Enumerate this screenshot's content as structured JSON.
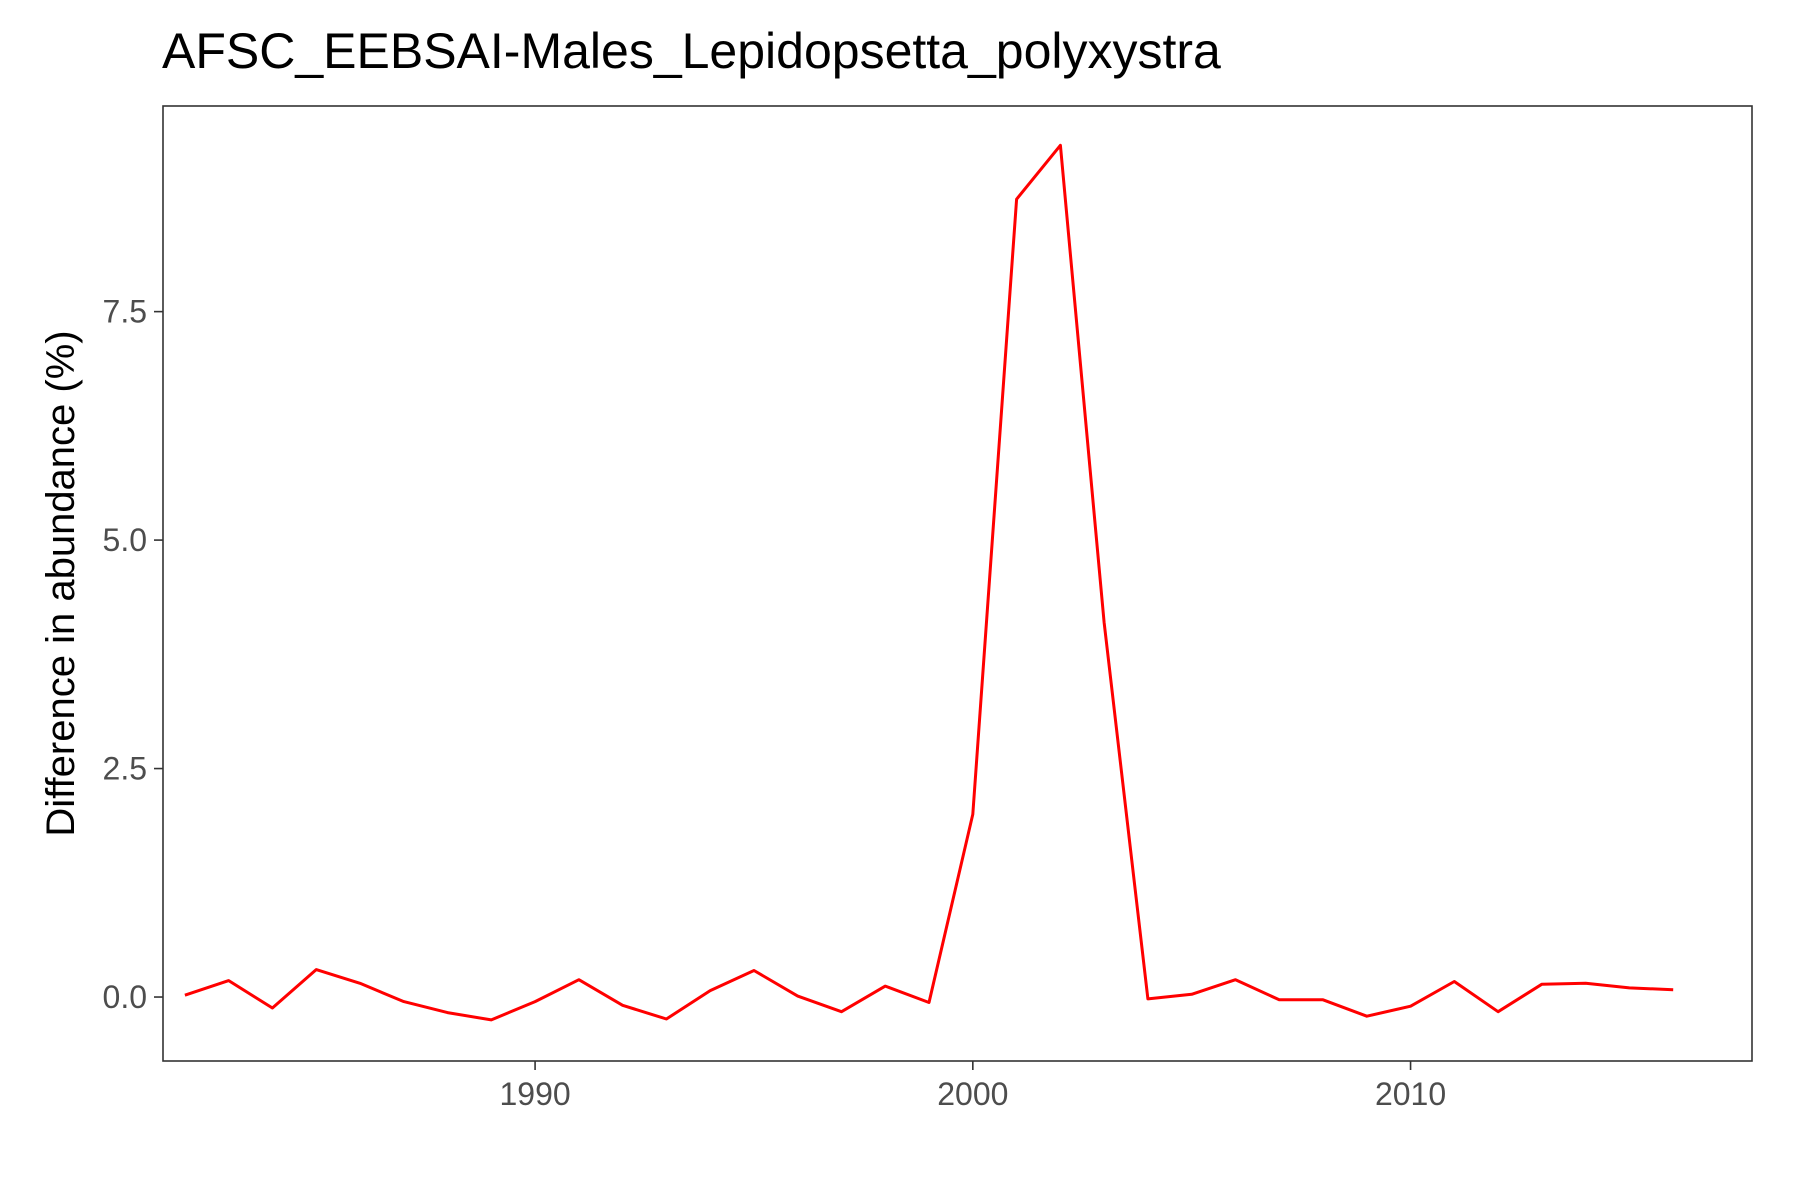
{
  "chart_data": {
    "type": "line",
    "title": "AFSC_EEBSAI-Males_Lepidopsetta_polyxystra",
    "xlabel": "",
    "ylabel": "Difference in abundance (%)",
    "xlim": [
      1981.5,
      2017.8
    ],
    "ylim": [
      -0.7,
      9.75
    ],
    "x_ticks": [
      1990,
      2000,
      2010
    ],
    "y_ticks": [
      0.0,
      2.5,
      5.0,
      7.5
    ],
    "y_tick_labels": [
      "0.0",
      "2.5",
      "5.0",
      "7.5"
    ],
    "grid": false,
    "line_color": "#ff0000",
    "series": [
      {
        "x": [
          1982,
          1983,
          1984,
          1985,
          1986,
          1987,
          1988,
          1989,
          1990,
          1991,
          1992,
          1993,
          1994,
          1995,
          1996,
          1997,
          1998,
          1999,
          2000,
          2001,
          2002,
          2003,
          2004,
          2005,
          2006,
          2007,
          2008,
          2009,
          2010,
          2011,
          2012,
          2013,
          2014,
          2015,
          2016
        ],
        "values": [
          0.02,
          0.18,
          -0.12,
          0.3,
          0.15,
          -0.05,
          -0.17,
          -0.25,
          -0.05,
          0.19,
          -0.09,
          -0.24,
          0.07,
          0.29,
          0.01,
          -0.16,
          0.12,
          -0.06,
          2.0,
          8.73,
          9.32,
          4.1,
          -0.02,
          0.03,
          0.19,
          -0.03,
          -0.03,
          -0.21,
          -0.1,
          0.17,
          -0.16,
          0.14,
          0.15,
          0.1,
          0.08
        ]
      }
    ]
  }
}
